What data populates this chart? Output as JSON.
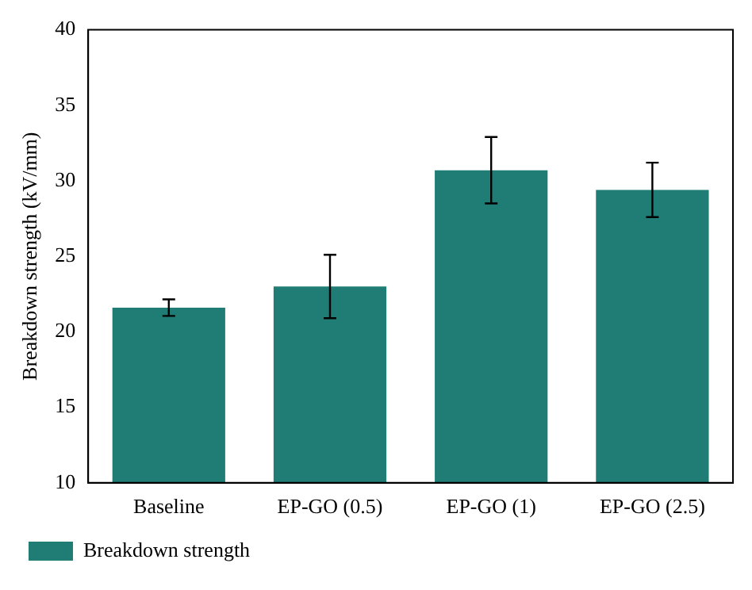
{
  "chart_data": {
    "type": "bar",
    "ylabel": "Breakdown strength (kV/mm)",
    "categories": [
      "Baseline",
      "EP-GO (0.5)",
      "EP-GO (1)",
      "EP-GO (2.5)"
    ],
    "series": [
      {
        "name": "Breakdown strength",
        "color": "#1f7d76",
        "values": [
          21.6,
          23.0,
          30.7,
          29.4
        ],
        "errors": [
          0.55,
          2.1,
          2.2,
          1.8
        ]
      }
    ],
    "ylim": [
      10,
      40
    ],
    "yticks": [
      10,
      15,
      20,
      25,
      30,
      35,
      40
    ],
    "grid": false,
    "legend": "bottom left"
  }
}
